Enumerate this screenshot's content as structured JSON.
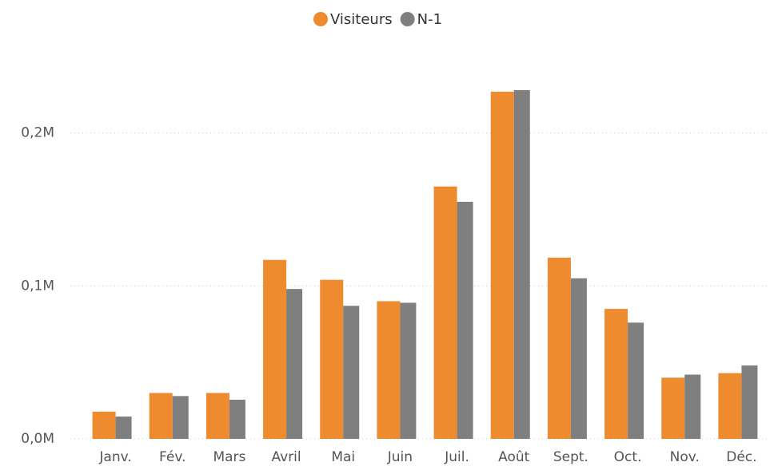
{
  "chart_data": {
    "type": "bar",
    "categories": [
      "Janv.",
      "Fév.",
      "Mars",
      "Avril",
      "Mai",
      "Juin",
      "Juil.",
      "Août",
      "Sept.",
      "Oct.",
      "Nov.",
      "Déc."
    ],
    "series": [
      {
        "name": "Visiteurs",
        "color": "#ee8b2f",
        "values": [
          17800,
          30000,
          30000,
          117000,
          104000,
          90000,
          165000,
          227000,
          118500,
          85000,
          40000,
          43000
        ]
      },
      {
        "name": "N-1",
        "color": "#7f7f7f",
        "values": [
          14600,
          28000,
          25600,
          98000,
          87000,
          89000,
          155000,
          228000,
          105000,
          76000,
          42000,
          48000
        ]
      }
    ],
    "ylim": [
      0,
      240000
    ],
    "yticks": [
      {
        "value": 0,
        "label": "0,0M"
      },
      {
        "value": 100000,
        "label": "0,1M"
      },
      {
        "value": 200000,
        "label": "0,2M"
      }
    ],
    "grid": true
  }
}
